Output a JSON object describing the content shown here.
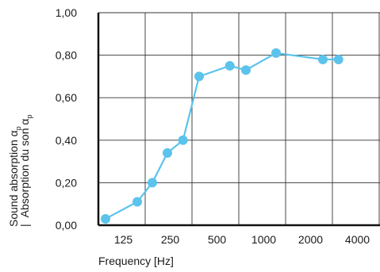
{
  "chart_data": {
    "type": "line",
    "xlabel": "Frequency [Hz]",
    "ylabel_en": "Sound absorption α",
    "ylabel_fr": "Absorption du son α",
    "ylabel_subscript": "p",
    "ylabel_separator": "|",
    "x_ticks": [
      "125",
      "250",
      "500",
      "1000",
      "2000",
      "4000"
    ],
    "y_ticks": [
      "0,00",
      "0,20",
      "0,40",
      "0,60",
      "0,80",
      "1,00"
    ],
    "ylim": [
      0,
      1
    ],
    "grid": true,
    "series_color": "#5bc3ec",
    "series": [
      {
        "x": [
          100,
          160,
          200,
          250,
          315,
          400,
          630,
          800,
          1250,
          2500,
          3150
        ],
        "y": [
          0.03,
          0.11,
          0.2,
          0.34,
          0.4,
          0.7,
          0.75,
          0.73,
          0.81,
          0.78,
          0.78
        ]
      }
    ]
  }
}
